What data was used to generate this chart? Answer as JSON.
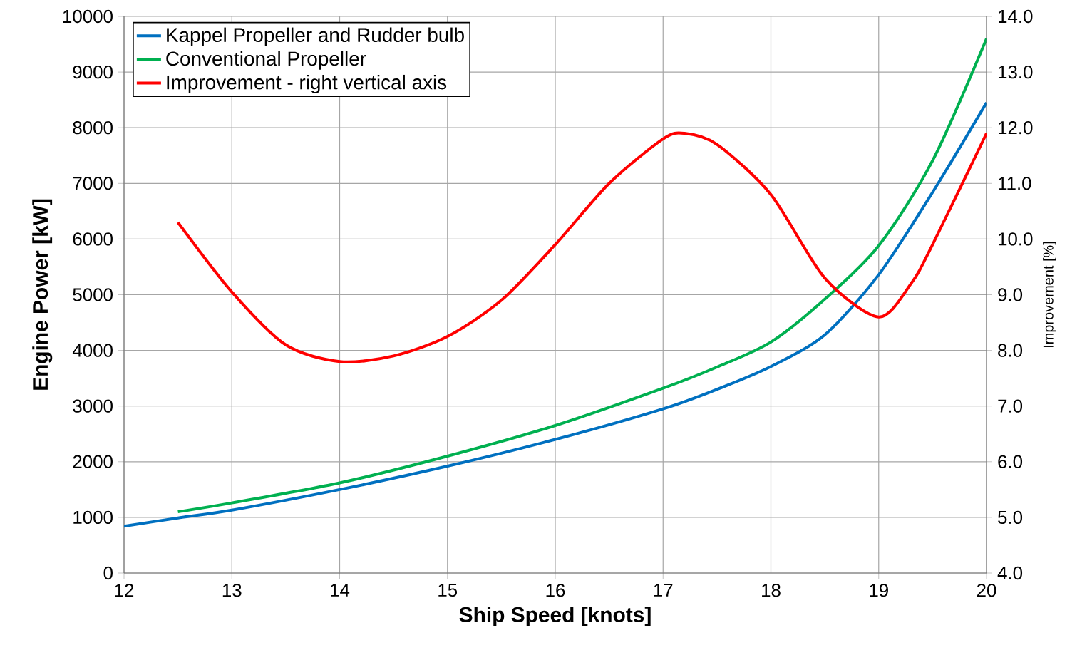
{
  "chart_data": {
    "type": "line",
    "xlabel": "Ship Speed [knots]",
    "ylabel": "Engine Power [kW]",
    "y2label": "Improvement [%]",
    "xlim": [
      12,
      20
    ],
    "xticks": [
      12,
      13,
      14,
      15,
      16,
      17,
      18,
      19,
      20
    ],
    "ylim": [
      0,
      10000
    ],
    "yticks": [
      0,
      1000,
      2000,
      3000,
      4000,
      5000,
      6000,
      7000,
      8000,
      9000,
      10000
    ],
    "y2lim": [
      4,
      14
    ],
    "y2ticks": [
      {
        "value": 4,
        "label": "4.0"
      },
      {
        "value": 5,
        "label": "5.0"
      },
      {
        "value": 6,
        "label": "6.0"
      },
      {
        "value": 7,
        "label": "7.0"
      },
      {
        "value": 8,
        "label": "8.0"
      },
      {
        "value": 9,
        "label": "9.0"
      },
      {
        "value": 10,
        "label": "10.0"
      },
      {
        "value": 11,
        "label": "11.0"
      },
      {
        "value": 12,
        "label": "12.0"
      },
      {
        "value": 13,
        "label": "13.0"
      },
      {
        "value": 14,
        "label": "14.0"
      }
    ],
    "grid": true,
    "legend": "top left",
    "marker": "none",
    "line_style": "solid",
    "series": [
      {
        "name": "Kappel Propeller and Rudder bulb",
        "color": "#0070c0",
        "x": [
          12,
          12.5,
          13,
          14,
          15,
          16,
          17,
          17.5,
          18,
          18.5,
          19,
          19.5,
          20
        ],
        "values": [
          840,
          990,
          1130,
          1500,
          1920,
          2400,
          2950,
          3300,
          3710,
          4280,
          5360,
          6840,
          8450
        ]
      },
      {
        "name": "Conventional Propeller",
        "color": "#00b050",
        "x": [
          12.5,
          13,
          14,
          15,
          16,
          17,
          17.5,
          18,
          18.5,
          19,
          19.5,
          20
        ],
        "values": [
          1100,
          1260,
          1620,
          2100,
          2650,
          3320,
          3700,
          4150,
          4920,
          5880,
          7410,
          9600
        ]
      },
      {
        "name": "Improvement - right vertical axis",
        "color": "#ff0000",
        "axis": "y2",
        "x": [
          12.5,
          13,
          13.5,
          14,
          14.5,
          15,
          15.5,
          16,
          16.5,
          17,
          17.2,
          17.5,
          18,
          18.5,
          19,
          19.3,
          19.5,
          20
        ],
        "values": [
          10.3,
          9.05,
          8.1,
          7.8,
          7.9,
          8.25,
          8.9,
          9.9,
          11.0,
          11.8,
          11.9,
          11.7,
          10.8,
          9.3,
          8.6,
          9.2,
          9.9,
          11.9
        ]
      }
    ]
  }
}
